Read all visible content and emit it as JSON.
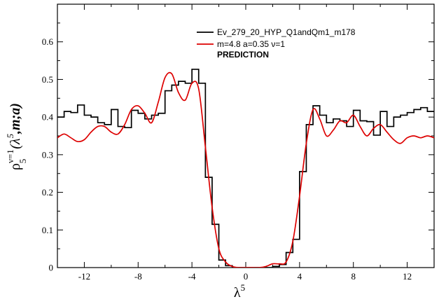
{
  "chart_data": {
    "type": "line",
    "title": "",
    "xlabel": {
      "base": "λ",
      "sup": "5"
    },
    "ylabel": {
      "rho": "ρ",
      "sub": "5",
      "sup": "ν=1",
      "rest_open": "(λ",
      "rest_sup": "5",
      "rest_close": ",m;a)"
    },
    "xlim": [
      -14,
      14
    ],
    "ylim": [
      0,
      0.7
    ],
    "xticks": [
      -12,
      -8,
      -4,
      0,
      4,
      8,
      12
    ],
    "xtick_labels": [
      "-12",
      "-8",
      "-4",
      "0",
      "4",
      "8",
      "12"
    ],
    "yticks": [
      0,
      0.1,
      0.2,
      0.3,
      0.4,
      0.5,
      0.6
    ],
    "ytick_labels": [
      "0",
      "0.1",
      "0.2",
      "0.3",
      "0.4",
      "0.5",
      "0.6"
    ],
    "grid": false,
    "legend_position": "top-right",
    "series": [
      {
        "name": "Ev_279_20_HYP_Q1andQm1_m178",
        "style": "step",
        "color": "#000000",
        "bin_edges": [
          -14,
          -13.5,
          -13,
          -12.5,
          -12,
          -11.5,
          -11,
          -10.5,
          -10,
          -9.5,
          -9,
          -8.5,
          -8,
          -7.5,
          -7,
          -6.5,
          -6,
          -5.5,
          -5,
          -4.5,
          -4,
          -3.5,
          -3,
          -2.5,
          -2,
          -1.5,
          -1,
          -0.5,
          0,
          0.5,
          1,
          1.5,
          2,
          2.5,
          3,
          3.5,
          4,
          4.5,
          5,
          5.5,
          6,
          6.5,
          7,
          7.5,
          8,
          8.5,
          9,
          9.5,
          10,
          10.5,
          11,
          11.5,
          12,
          12.5,
          13,
          13.5,
          14
        ],
        "values": [
          0.4,
          0.415,
          0.412,
          0.432,
          0.405,
          0.4,
          0.385,
          0.38,
          0.42,
          0.375,
          0.372,
          0.418,
          0.41,
          0.395,
          0.405,
          0.41,
          0.47,
          0.485,
          0.495,
          0.49,
          0.527,
          0.49,
          0.24,
          0.115,
          0.02,
          0.005,
          0.0,
          0.0,
          0.0,
          0.0,
          0.0,
          0.0,
          0.003,
          0.008,
          0.04,
          0.075,
          0.255,
          0.38,
          0.43,
          0.405,
          0.385,
          0.395,
          0.39,
          0.375,
          0.418,
          0.39,
          0.388,
          0.352,
          0.415,
          0.375,
          0.4,
          0.405,
          0.412,
          0.42,
          0.425,
          0.415
        ]
      },
      {
        "name": "m=4.8 a=0.35 ν=1",
        "style": "curve",
        "color": "#dd0000",
        "x": [
          -14,
          -13.5,
          -13,
          -12.5,
          -12,
          -11.5,
          -11,
          -10.5,
          -10,
          -9.5,
          -9,
          -8.5,
          -8,
          -7.5,
          -7,
          -6.5,
          -6,
          -5.5,
          -5,
          -4.5,
          -4,
          -3.5,
          -3,
          -2.5,
          -2,
          -1.5,
          -1,
          -0.5,
          0,
          0.5,
          1,
          1.5,
          2,
          2.5,
          3,
          3.5,
          4,
          4.5,
          5,
          5.5,
          6,
          6.5,
          7,
          7.5,
          8,
          8.5,
          9,
          9.5,
          10,
          10.5,
          11,
          11.5,
          12,
          12.5,
          13,
          13.5,
          14
        ],
        "y": [
          0.345,
          0.355,
          0.345,
          0.335,
          0.34,
          0.36,
          0.375,
          0.375,
          0.36,
          0.355,
          0.38,
          0.42,
          0.43,
          0.41,
          0.385,
          0.44,
          0.505,
          0.515,
          0.465,
          0.445,
          0.49,
          0.475,
          0.32,
          0.16,
          0.05,
          0.015,
          0.003,
          0.0,
          0.0,
          0.0,
          0.0,
          0.003,
          0.01,
          0.01,
          0.015,
          0.07,
          0.19,
          0.33,
          0.42,
          0.395,
          0.35,
          0.365,
          0.39,
          0.385,
          0.405,
          0.375,
          0.35,
          0.37,
          0.38,
          0.36,
          0.34,
          0.33,
          0.345,
          0.35,
          0.345,
          0.35,
          0.345
        ]
      }
    ],
    "annotations": [
      "PREDICTION"
    ]
  }
}
